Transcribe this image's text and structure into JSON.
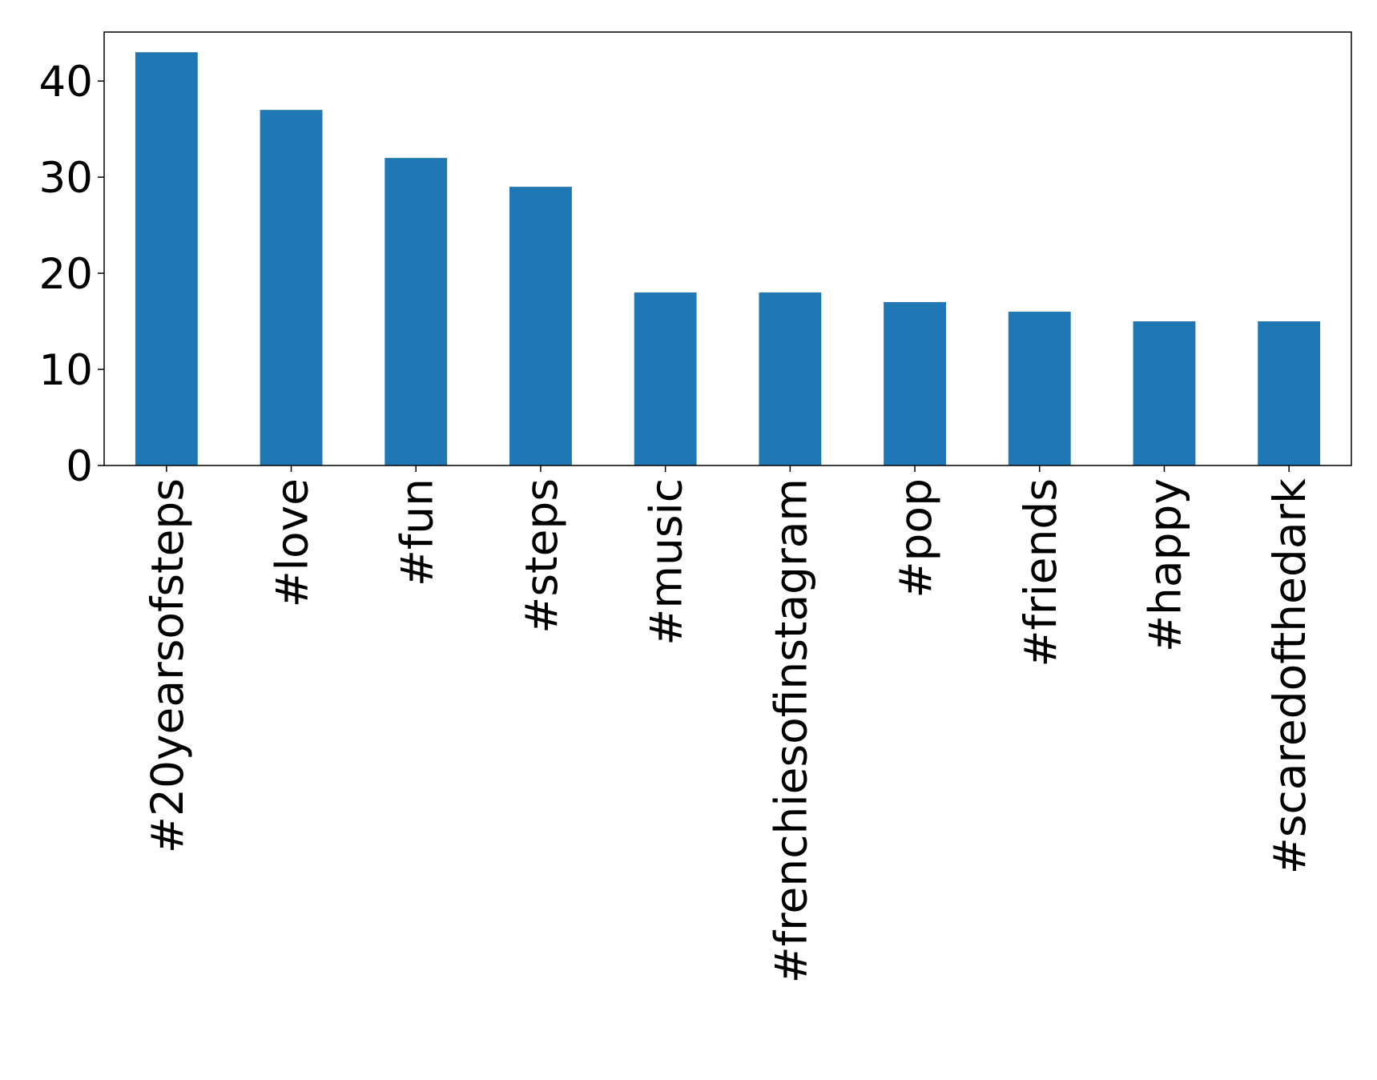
{
  "chart_data": {
    "type": "bar",
    "categories": [
      "#20yearsofsteps",
      "#love",
      "#fun",
      "#steps",
      "#music",
      "#frenchiesofinstagram",
      "#pop",
      "#friends",
      "#happy",
      "#scaredofthedark"
    ],
    "values": [
      43,
      37,
      32,
      29,
      18,
      18,
      17,
      16,
      15,
      15
    ],
    "color": "#1f77b4",
    "ylim": [
      0,
      45.1
    ],
    "yticks": [
      0,
      10,
      20,
      30,
      40
    ],
    "grid": false
  }
}
